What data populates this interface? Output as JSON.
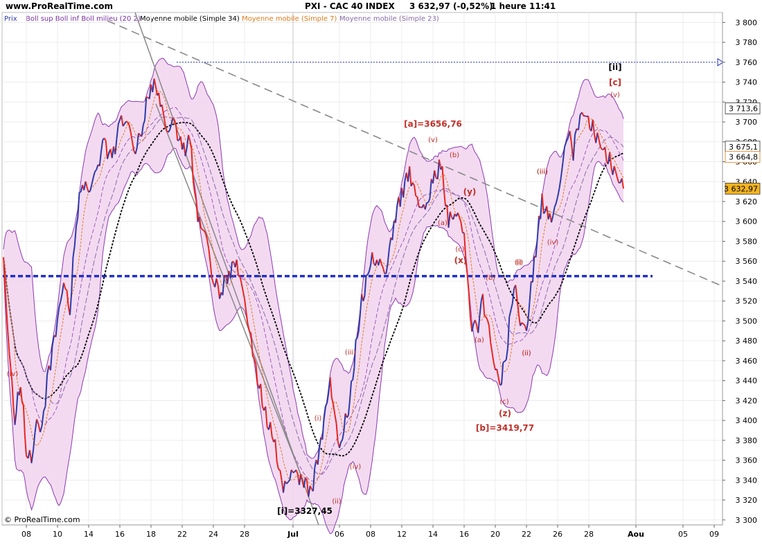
{
  "header": {
    "site": "www.ProRealTime.com",
    "title": "PXI - CAC 40 INDEX",
    "quote": "3 632,97 (-0,52%)",
    "timeframe": "1 heure",
    "time": "11:41"
  },
  "legend": [
    {
      "label": "Prix",
      "color": "#2d3aa8"
    },
    {
      "label": "Boll sup Boll inf Boll milieu (20 2)",
      "color": "#7a2ca0"
    },
    {
      "label": "Moyenne mobile (Simple 34)",
      "color": "#000000"
    },
    {
      "label": "Moyenne mobile (Simple 7)",
      "color": "#e07a1a"
    },
    {
      "label": "Moyenne mobile (Simple 23)",
      "color": "#8a6aa8"
    }
  ],
  "footer": {
    "copyright": "© ProRealTime.com"
  },
  "colors": {
    "up": "#2d3aa8",
    "down": "#e8261c",
    "band_fill": "#f2d6ef",
    "band_line": "#8b3ab0",
    "ma34": "#000000",
    "ma7": "#e07a1a",
    "ma23": "#8a6aa8",
    "support": "#2230c8",
    "trend": "#888888",
    "annotation": "#c0302a"
  },
  "chart_data": {
    "type": "line",
    "y_axis": {
      "min": 3295,
      "max": 3810,
      "ticks": [
        "3 300",
        "3 320",
        "3 340",
        "3 360",
        "3 380",
        "3 400",
        "3 420",
        "3 440",
        "3 460",
        "3 480",
        "3 500",
        "3 520",
        "3 540",
        "3 560",
        "3 580",
        "3 600",
        "3 620",
        "3 640",
        "3 660",
        "3 680",
        "3 700",
        "3 720",
        "3 740",
        "3 760",
        "3 780",
        "3 800"
      ],
      "tick_values": [
        3300,
        3320,
        3340,
        3360,
        3380,
        3400,
        3420,
        3440,
        3460,
        3480,
        3500,
        3520,
        3540,
        3560,
        3580,
        3600,
        3620,
        3640,
        3660,
        3680,
        3700,
        3720,
        3740,
        3760,
        3780,
        3800
      ]
    },
    "x_axis": {
      "ticks": [
        "08",
        "10",
        "14",
        "16",
        "18",
        "22",
        "24",
        "28",
        "Jul",
        "06",
        "08",
        "12",
        "14",
        "16",
        "20",
        "22",
        "26",
        "28",
        "Aou",
        "05",
        "09"
      ]
    },
    "last_price_labels": [
      {
        "text": "3 713,6",
        "value": 3713.6
      },
      {
        "text": "3 675,1",
        "value": 3675.1
      },
      {
        "text": "3 664,8",
        "value": 3664.8
      },
      {
        "text": "3 632,97",
        "value": 3632.97
      }
    ],
    "price_path": [
      [
        "08",
        3560
      ],
      [
        "08",
        3470
      ],
      [
        "08",
        3400
      ],
      [
        "08",
        3440
      ],
      [
        "08",
        3370
      ],
      [
        "10",
        3360
      ],
      [
        "10",
        3400
      ],
      [
        "10",
        3390
      ],
      [
        "10",
        3440
      ],
      [
        "10",
        3470
      ],
      [
        "10",
        3500
      ],
      [
        "14",
        3540
      ],
      [
        "14",
        3510
      ],
      [
        "14",
        3600
      ],
      [
        "14",
        3640
      ],
      [
        "14",
        3630
      ],
      [
        "16",
        3650
      ],
      [
        "16",
        3680
      ],
      [
        "16",
        3660
      ],
      [
        "16",
        3700
      ],
      [
        "18",
        3700
      ],
      [
        "18",
        3670
      ],
      [
        "18",
        3700
      ],
      [
        "18",
        3740
      ],
      [
        "22",
        3730
      ],
      [
        "22",
        3690
      ],
      [
        "22",
        3700
      ],
      [
        "22",
        3670
      ],
      [
        "24",
        3680
      ],
      [
        "24",
        3600
      ],
      [
        "24",
        3590
      ],
      [
        "24",
        3540
      ],
      [
        "28",
        3530
      ],
      [
        "28",
        3550
      ],
      [
        "28",
        3560
      ],
      [
        "28",
        3520
      ],
      [
        "Jul",
        3460
      ],
      [
        "Jul",
        3410
      ],
      [
        "Jul",
        3380
      ],
      [
        "Jul",
        3330
      ],
      [
        "Jul",
        3350
      ],
      [
        "06",
        3340
      ],
      [
        "06",
        3330
      ],
      [
        "06",
        3380
      ],
      [
        "06",
        3440
      ],
      [
        "06",
        3370
      ],
      [
        "08",
        3420
      ],
      [
        "08",
        3510
      ],
      [
        "08",
        3560
      ],
      [
        "12",
        3560
      ],
      [
        "12",
        3550
      ],
      [
        "12",
        3600
      ],
      [
        "12",
        3630
      ],
      [
        "14",
        3650
      ],
      [
        "14",
        3620
      ],
      [
        "14",
        3610
      ],
      [
        "14",
        3640
      ],
      [
        "16",
        3657
      ],
      [
        "16",
        3600
      ],
      [
        "16",
        3610
      ],
      [
        "16",
        3590
      ],
      [
        "20",
        3500
      ],
      [
        "20",
        3490
      ],
      [
        "20",
        3520
      ],
      [
        "20",
        3490
      ],
      [
        "20",
        3450
      ],
      [
        "22",
        3440
      ],
      [
        "22",
        3480
      ],
      [
        "22",
        3540
      ],
      [
        "22",
        3500
      ],
      [
        "22",
        3490
      ],
      [
        "26",
        3560
      ],
      [
        "26",
        3620
      ],
      [
        "26",
        3600
      ],
      [
        "26",
        3620
      ],
      [
        "28",
        3660
      ],
      [
        "28",
        3690
      ],
      [
        "28",
        3670
      ],
      [
        "28",
        3700
      ],
      [
        "28",
        3710
      ],
      [
        "28",
        3633
      ]
    ],
    "support_level": 3545,
    "resistance_level": 3760,
    "annotations": [
      {
        "text": "[a]=3656,76",
        "value": 3656.76
      },
      {
        "text": "[b]=3419,77",
        "value": 3419.77
      },
      {
        "text": "[i]=3327,45",
        "value": 3327.45
      },
      {
        "text": "[ii]",
        "value": 3760
      },
      {
        "text": "[c]",
        "value": 3742
      },
      {
        "text": "(y)",
        "value": 3630
      },
      {
        "text": "(x)",
        "value": 3560
      },
      {
        "text": "(z)",
        "value": 3400
      }
    ],
    "wave_labels": [
      "(v)",
      "(b)",
      "(a)",
      "(c)",
      "(a)",
      "(b)",
      "(c)",
      "(i)",
      "(ii)",
      "(iii)",
      "(iv)",
      "(v)",
      "(iii)",
      "(ii)",
      "(i)",
      "(iv)",
      "(iv)",
      "(i)",
      "(ii)",
      "(iii)"
    ]
  }
}
